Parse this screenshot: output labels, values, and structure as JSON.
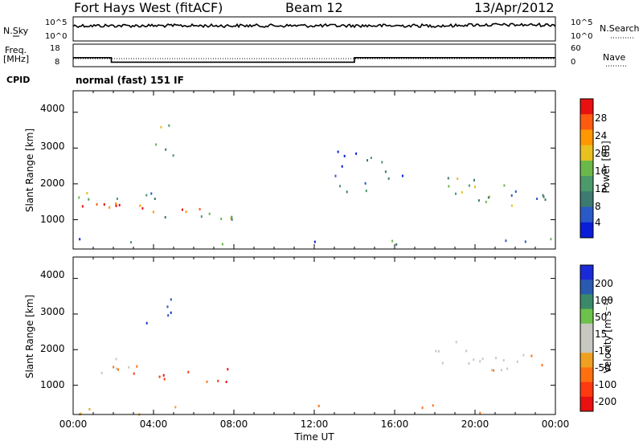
{
  "header": {
    "station": "Fort Hays West (fitACF)",
    "beam": "Beam 12",
    "date": "13/Apr/2012"
  },
  "noise_panel": {
    "left_label": "N.Sky",
    "left_ticks": [
      "10^5",
      "10^0"
    ],
    "right_label": "N.Search",
    "right_ticks": [
      "10^5",
      "10^0"
    ]
  },
  "freq_panel": {
    "left_label_1": "Freq.",
    "left_label_2": "[MHz]",
    "left_ticks": [
      "18",
      "8"
    ],
    "right_label": "Nave",
    "right_ticks": [
      "60",
      "0"
    ]
  },
  "cpid": {
    "label": "CPID",
    "mode": "normal (fast) 151 IF"
  },
  "x_axis": {
    "title": "Time UT",
    "ticks": [
      "00:00",
      "04:00",
      "08:00",
      "12:00",
      "16:00",
      "20:00",
      "00:00"
    ]
  },
  "power_panel": {
    "ylabel": "Slant Range [km]",
    "yticks": [
      "4000",
      "3000",
      "2000",
      "1000"
    ],
    "colorbar_title": "Power [dB]",
    "colorbar_ticks": [
      "28",
      "24",
      "20",
      "16",
      "12",
      "8",
      "4"
    ]
  },
  "velocity_panel": {
    "ylabel": "Slant Range [km]",
    "yticks": [
      "4000",
      "3000",
      "2000",
      "1000"
    ],
    "colorbar_title": "Velocity [m s⁻¹]",
    "colorbar_ticks": [
      "200",
      "100",
      "50",
      "15",
      "-15",
      "-50",
      "-100",
      "-200"
    ]
  },
  "colors": {
    "power_scale": [
      "#0a1ed8",
      "#2a5ac8",
      "#3d7a70",
      "#4a9a6a",
      "#6ab84a",
      "#e8c020",
      "#ff9800",
      "#ff5a10",
      "#e81010"
    ],
    "velocity_scale": [
      "#1a2ad8",
      "#2a5ab0",
      "#3a8a6a",
      "#6cc24a",
      "#c8c8c0",
      "#c8c8c0",
      "#f0a020",
      "#ff7010",
      "#ff3a10",
      "#e81010"
    ]
  },
  "chart_data": [
    {
      "type": "line",
      "title": "N.Sky",
      "x_unit": "hours UT",
      "xlim": [
        0,
        24
      ],
      "y_scale": "log",
      "ylim": [
        1,
        100000
      ],
      "series": [
        {
          "values": [
            [
              0,
              5000
            ],
            [
              24,
              5000
            ]
          ]
        }
      ]
    },
    {
      "type": "line",
      "title": "Freq. [MHz]",
      "x_unit": "hours UT",
      "xlim": [
        0,
        24
      ],
      "ylim": [
        8,
        18
      ],
      "series": [
        {
          "name": "Freq.",
          "values": [
            [
              0,
              12
            ],
            [
              1.9,
              12
            ],
            [
              1.9,
              10
            ],
            [
              14.0,
              10
            ],
            [
              14.0,
              12
            ],
            [
              24,
              12
            ]
          ]
        },
        {
          "name": "Nave",
          "values": [
            [
              0,
              10
            ],
            [
              24,
              10
            ]
          ]
        }
      ]
    },
    {
      "type": "heatmap",
      "title": "Power [dB]",
      "xlabel": "Time UT",
      "ylabel": "Slant Range [km]",
      "xlim": [
        0,
        24
      ],
      "ylim": [
        180,
        4600
      ],
      "colorbar_ticks": [
        28,
        24,
        20,
        16,
        12,
        8,
        4
      ],
      "features": [
        {
          "t_range": [
            0,
            8.0
          ],
          "range_km": [
            1000,
            2200
          ],
          "typical_power_db": 18
        },
        {
          "t_range": [
            3.5,
            5.0
          ],
          "range_km": [
            2700,
            3700
          ],
          "typical_power_db": 10
        },
        {
          "t_range": [
            13.0,
            16.5
          ],
          "range_km": [
            1800,
            3000
          ],
          "typical_power_db": 6
        },
        {
          "t_range": [
            18.0,
            24.0
          ],
          "range_km": [
            1400,
            2400
          ],
          "typical_power_db": 12
        },
        {
          "t_range": [
            0,
            24
          ],
          "range_km": [
            200,
            500
          ],
          "typical_power_db": 8
        }
      ]
    },
    {
      "type": "heatmap",
      "title": "Velocity [m s⁻¹]",
      "xlabel": "Time UT",
      "ylabel": "Slant Range [km]",
      "xlim": [
        0,
        24
      ],
      "ylim": [
        180,
        4600
      ],
      "colorbar_ticks": [
        200,
        100,
        50,
        15,
        -15,
        -50,
        -100,
        -200
      ],
      "features": [
        {
          "t_range": [
            0,
            3.0
          ],
          "range_km": [
            1100,
            1800
          ],
          "typical_velocity": 0
        },
        {
          "t_range": [
            2.5,
            8.0
          ],
          "range_km": [
            1100,
            1600
          ],
          "typical_velocity": -200
        },
        {
          "t_range": [
            3.5,
            5.0
          ],
          "range_km": [
            2700,
            3700
          ],
          "typical_velocity": 150
        },
        {
          "t_range": [
            18.0,
            24.0
          ],
          "range_km": [
            1400,
            2400
          ],
          "typical_velocity": 0
        },
        {
          "t_range": [
            0,
            24
          ],
          "range_km": [
            200,
            500
          ],
          "typical_velocity": -50
        }
      ]
    }
  ]
}
